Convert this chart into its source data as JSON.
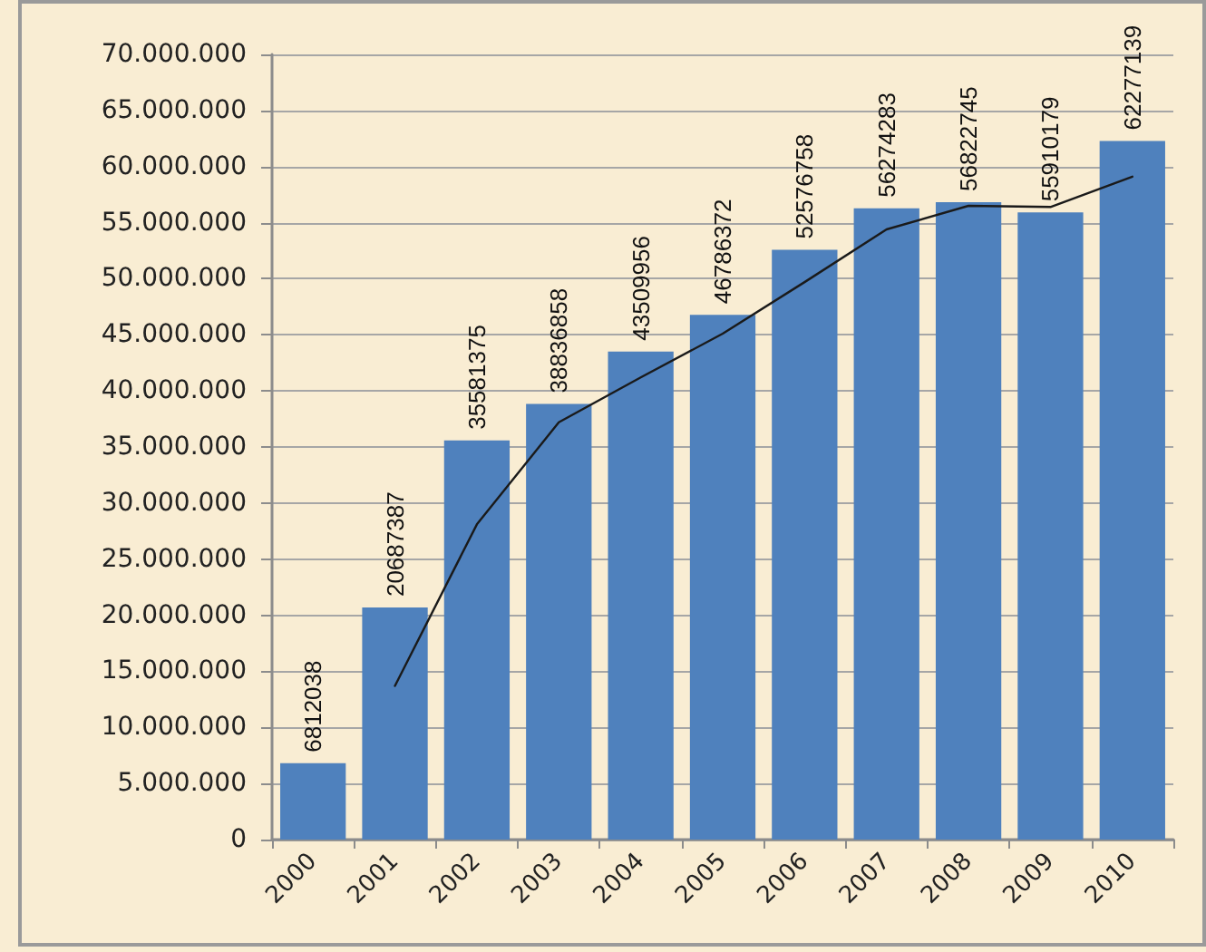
{
  "chart_data": {
    "type": "bar",
    "categories": [
      "2000",
      "2001",
      "2002",
      "2003",
      "2004",
      "2005",
      "2006",
      "2007",
      "2008",
      "2009",
      "2010"
    ],
    "series": [
      {
        "color": "#4f81bd",
        "data_labels": true,
        "values": [
          6812038,
          20687387,
          35581375,
          38836858,
          43509956,
          46786372,
          52576758,
          56274283,
          56822745,
          55910179,
          62277139
        ]
      },
      {
        "type": "line",
        "color": "#1a1a1a",
        "values": [
          null,
          13700000,
          28100000,
          37200000,
          41200000,
          45100000,
          49700000,
          54400000,
          56500000,
          56400000,
          59100000
        ]
      }
    ],
    "ylim": [
      0,
      70000000
    ],
    "yticks": [
      0,
      {
        "value": 5000000,
        "label": "5.000.000"
      },
      {
        "value": 10000000,
        "label": "10.000.000"
      },
      {
        "value": 15000000,
        "label": "15.000.000"
      },
      {
        "value": 20000000,
        "label": "20.000.000"
      },
      {
        "value": 25000000,
        "label": "25.000.000"
      },
      {
        "value": 30000000,
        "label": "30.000.000"
      },
      {
        "value": 35000000,
        "label": "35.000.000"
      },
      {
        "value": 40000000,
        "label": "40.000.000"
      },
      {
        "value": 45000000,
        "label": "45.000.000"
      },
      {
        "value": 50000000,
        "label": "50.000.000"
      },
      {
        "value": 55000000,
        "label": "55.000.000"
      },
      {
        "value": 60000000,
        "label": "60.000.000"
      },
      {
        "value": 65000000,
        "label": "65.000.000"
      },
      {
        "value": 70000000,
        "label": "70.000.000"
      }
    ],
    "grid": "y",
    "marker": "none",
    "line_style": "solid"
  }
}
